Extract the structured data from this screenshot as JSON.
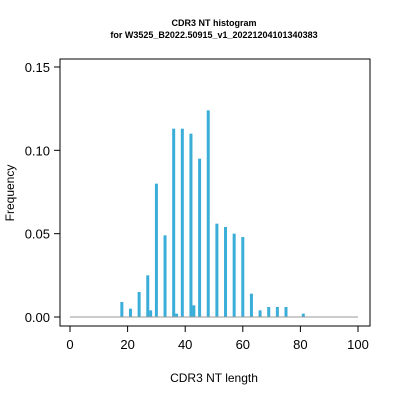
{
  "chart_data": {
    "type": "bar",
    "title": "CDR3 NT histogram",
    "subtitle": "for W3525_B2022.50915_v1_20221204101340383",
    "xlabel": "CDR3 NT length",
    "ylabel": "Frequency",
    "xlim": [
      0,
      100
    ],
    "ylim": [
      0,
      0.15
    ],
    "x_ticks": [
      "0",
      "20",
      "40",
      "60",
      "80",
      "100"
    ],
    "y_ticks": [
      "0.00",
      "0.05",
      "0.10",
      "0.15"
    ],
    "baseline": 0,
    "bar_color": "#3aaed8",
    "baseline_color": "#999999",
    "x": [
      18,
      21,
      24,
      27,
      28,
      30,
      33,
      36,
      37,
      39,
      42,
      43,
      45,
      48,
      51,
      54,
      57,
      60,
      63,
      66,
      69,
      72,
      75,
      81
    ],
    "values": [
      0.009,
      0.005,
      0.015,
      0.025,
      0.004,
      0.08,
      0.049,
      0.113,
      0.002,
      0.113,
      0.11,
      0.007,
      0.095,
      0.124,
      0.056,
      0.054,
      0.05,
      0.048,
      0.014,
      0.004,
      0.006,
      0.006,
      0.006,
      0.002
    ]
  }
}
